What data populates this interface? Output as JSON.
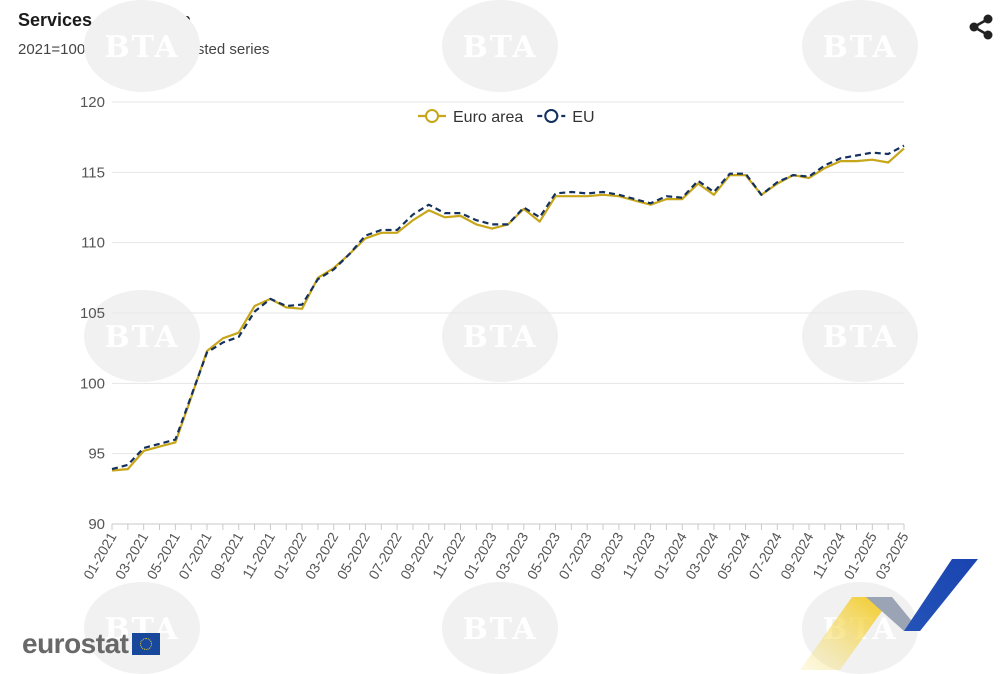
{
  "header": {
    "title": "Services production",
    "subtitle": "2021=100, seasonally adjusted series",
    "share_icon": "share-icon"
  },
  "watermarks": [
    "BTA",
    "BTA",
    "BTA",
    "BTA",
    "BTA",
    "BTA",
    "BTA",
    "BTA",
    "BTA"
  ],
  "footer": {
    "logo": "eurostat",
    "flag_icon": "eu-flag-icon"
  },
  "colors": {
    "euro_area": "#c8a61a",
    "eu": "#14305e",
    "grid": "#e6e6e6",
    "axis": "#c9c9c9",
    "tick_text": "#555555"
  },
  "chart_data": {
    "type": "line",
    "title": "Services production",
    "subtitle": "2021=100, seasonally adjusted series",
    "xlabel": "",
    "ylabel": "",
    "ylim": [
      90,
      120
    ],
    "yticks": [
      90,
      95,
      100,
      105,
      110,
      115,
      120
    ],
    "grid": true,
    "legend": "top-center",
    "x": [
      "01-2021",
      "02-2021",
      "03-2021",
      "04-2021",
      "05-2021",
      "06-2021",
      "07-2021",
      "08-2021",
      "09-2021",
      "10-2021",
      "11-2021",
      "12-2021",
      "01-2022",
      "02-2022",
      "03-2022",
      "04-2022",
      "05-2022",
      "06-2022",
      "07-2022",
      "08-2022",
      "09-2022",
      "10-2022",
      "11-2022",
      "12-2022",
      "01-2023",
      "02-2023",
      "03-2023",
      "04-2023",
      "05-2023",
      "06-2023",
      "07-2023",
      "08-2023",
      "09-2023",
      "10-2023",
      "11-2023",
      "12-2023",
      "01-2024",
      "02-2024",
      "03-2024",
      "04-2024",
      "05-2024",
      "06-2024",
      "07-2024",
      "08-2024",
      "09-2024",
      "10-2024",
      "11-2024",
      "12-2024",
      "01-2025",
      "02-2025",
      "03-2025"
    ],
    "xtick_labels": [
      "01-2021",
      "03-2021",
      "05-2021",
      "07-2021",
      "09-2021",
      "11-2021",
      "01-2022",
      "03-2022",
      "05-2022",
      "07-2022",
      "09-2022",
      "11-2022",
      "01-2023",
      "03-2023",
      "05-2023",
      "07-2023",
      "09-2023",
      "11-2023",
      "01-2024",
      "03-2024",
      "05-2024",
      "07-2024",
      "09-2024",
      "11-2024",
      "01-2025",
      "03-2025"
    ],
    "series": [
      {
        "name": "Euro area",
        "style": "solid",
        "marker": "open-circle",
        "values": [
          93.8,
          93.9,
          95.2,
          95.5,
          95.8,
          99.0,
          102.3,
          103.2,
          103.6,
          105.5,
          106.0,
          105.4,
          105.3,
          107.5,
          108.2,
          109.2,
          110.3,
          110.7,
          110.7,
          111.6,
          112.3,
          111.8,
          111.9,
          111.3,
          111.0,
          111.3,
          112.4,
          111.5,
          113.3,
          113.3,
          113.3,
          113.4,
          113.3,
          113.0,
          112.7,
          113.1,
          113.1,
          114.2,
          113.4,
          114.8,
          114.8,
          113.4,
          114.2,
          114.8,
          114.6,
          115.3,
          115.8,
          115.8,
          115.9,
          115.7,
          116.7
        ]
      },
      {
        "name": "EU",
        "style": "dashed",
        "marker": "open-circle",
        "values": [
          93.9,
          94.2,
          95.4,
          95.7,
          96.0,
          99.1,
          102.2,
          102.9,
          103.3,
          105.1,
          106.0,
          105.5,
          105.6,
          107.4,
          108.1,
          109.2,
          110.5,
          110.9,
          110.9,
          112.0,
          112.7,
          112.1,
          112.1,
          111.6,
          111.3,
          111.3,
          112.5,
          111.8,
          113.5,
          113.6,
          113.5,
          113.6,
          113.4,
          113.1,
          112.8,
          113.3,
          113.2,
          114.4,
          113.6,
          114.9,
          114.9,
          113.4,
          114.3,
          114.8,
          114.7,
          115.5,
          116.0,
          116.2,
          116.4,
          116.3,
          116.9
        ]
      }
    ]
  }
}
